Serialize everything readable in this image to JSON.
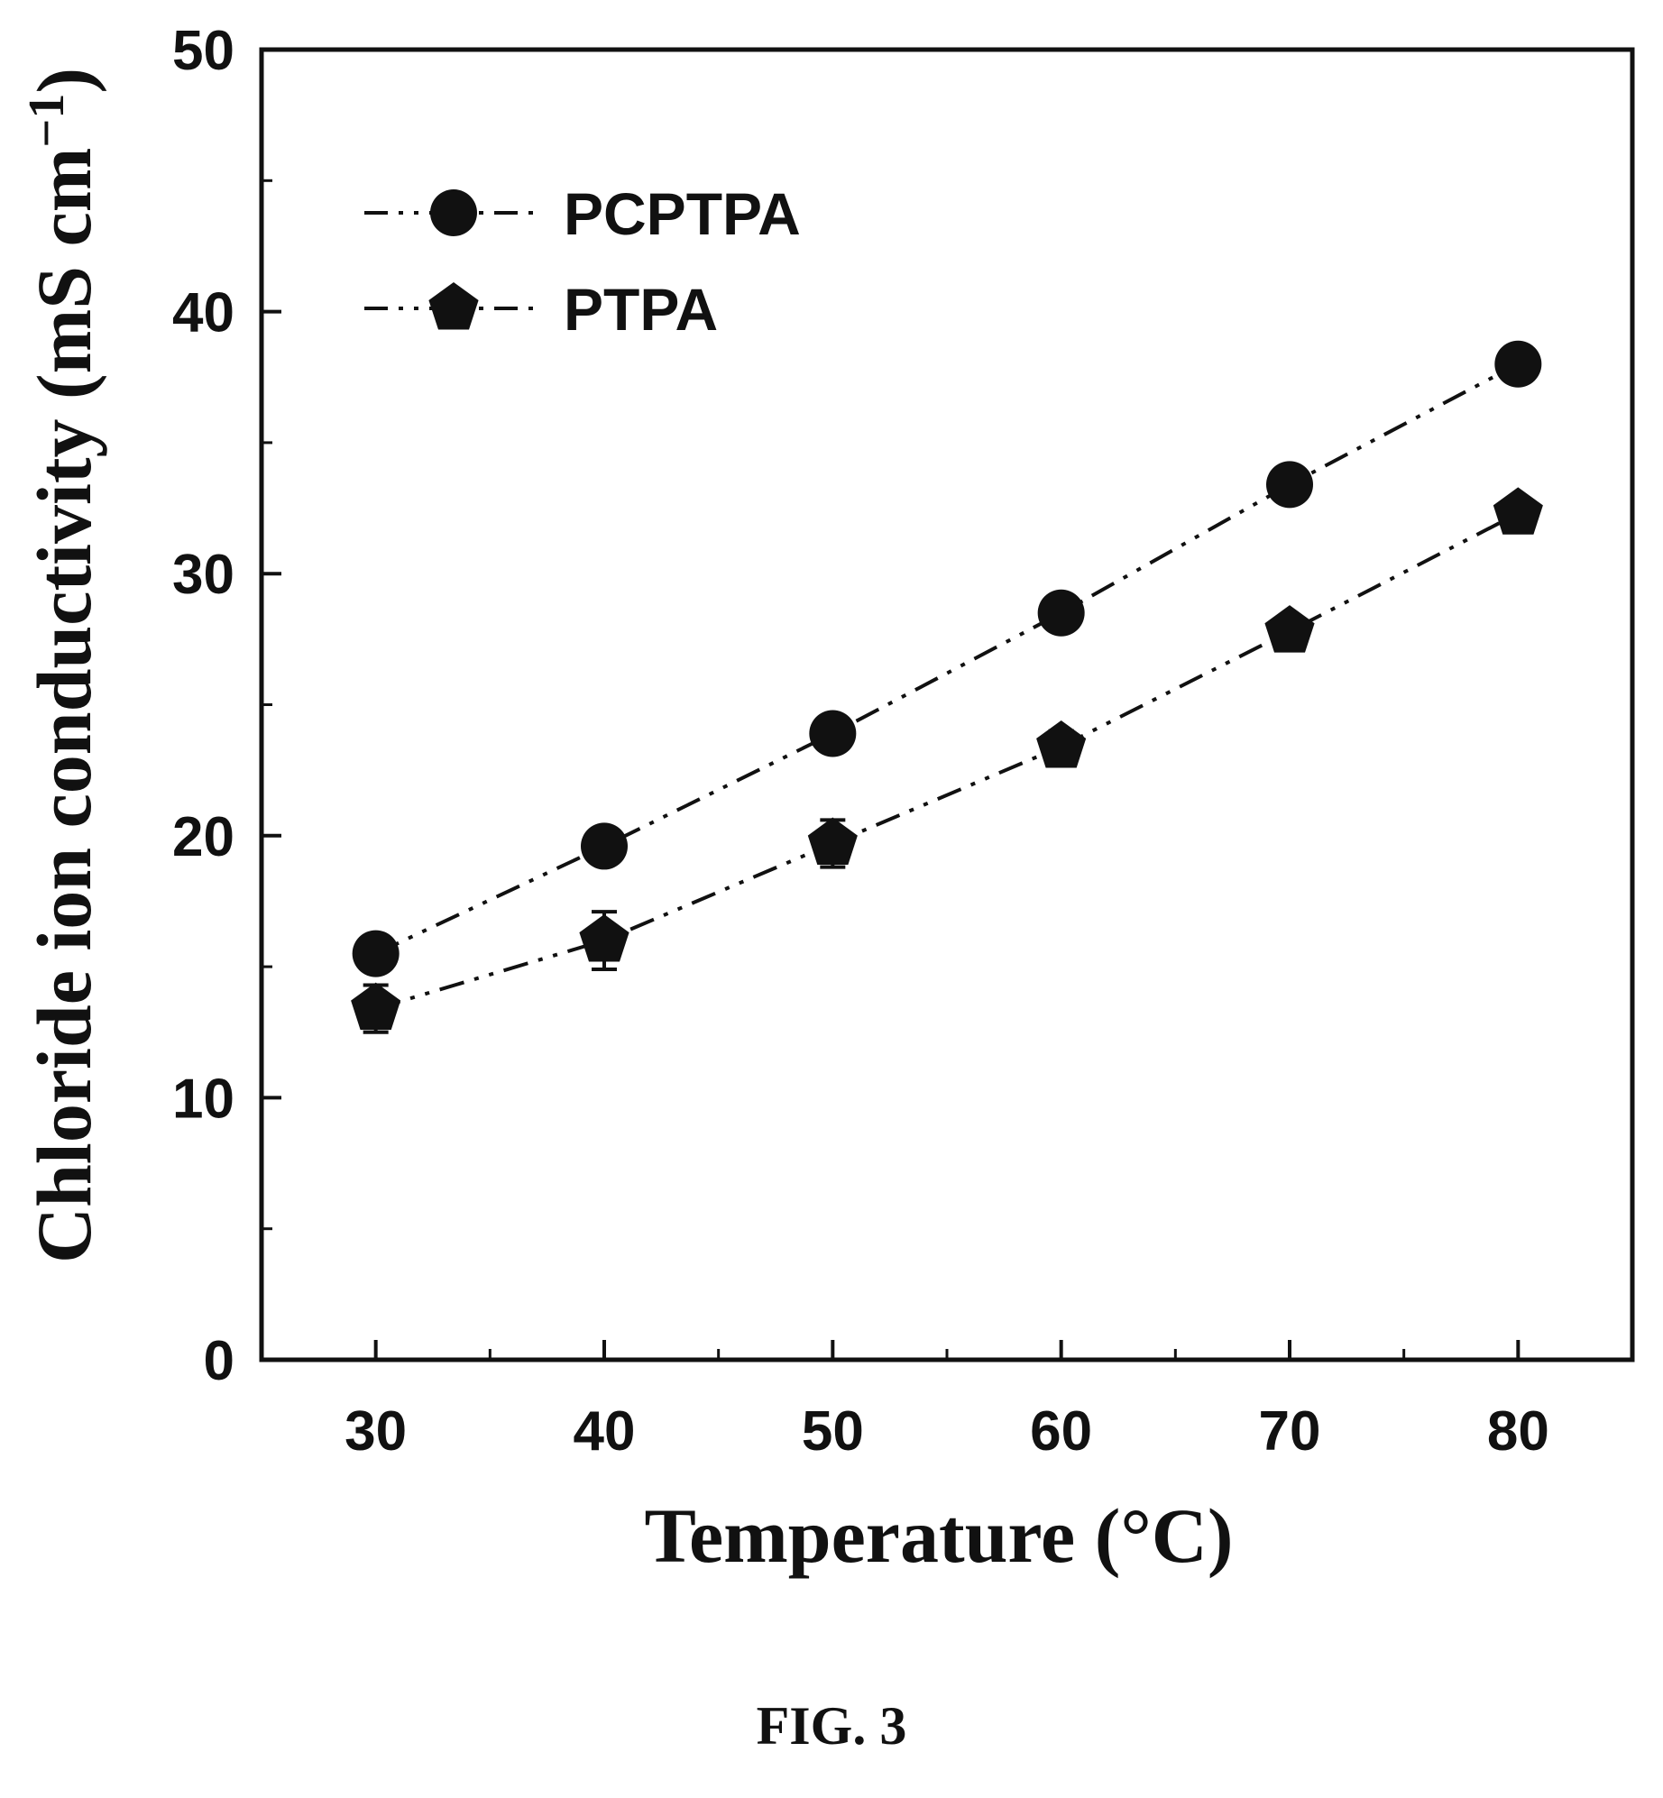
{
  "figure": {
    "caption": "FIG. 3"
  },
  "chart_data": {
    "type": "line",
    "xlabel": "Temperature (°C)",
    "ylabel": "Chloride ion conductivity (mS cm",
    "ylabel_superscript": "−1",
    "ylabel_close": ")",
    "xlim": [
      25,
      85
    ],
    "ylim": [
      0,
      50
    ],
    "x_ticks": [
      30,
      40,
      50,
      60,
      70,
      80
    ],
    "y_ticks": [
      0,
      10,
      20,
      30,
      40,
      50
    ],
    "x_minor_ticks": [
      35,
      45,
      55,
      65,
      75
    ],
    "y_minor_ticks": [
      5,
      15,
      25,
      35,
      45
    ],
    "x": [
      30,
      40,
      50,
      60,
      70,
      80
    ],
    "legend_position": "top-left",
    "grid": false,
    "series": [
      {
        "name": "PCPTPA",
        "marker": "circle",
        "line_style": "dash-dot-dot",
        "color": "#111111",
        "values": [
          15.5,
          19.6,
          23.9,
          28.5,
          33.4,
          38.0
        ],
        "errors": [
          0.3,
          0.3,
          0.3,
          0.3,
          0.3,
          0.3
        ]
      },
      {
        "name": "PTPA",
        "marker": "pentagon",
        "line_style": "dash-dot-dot",
        "color": "#111111",
        "values": [
          13.4,
          16.0,
          19.7,
          23.4,
          27.8,
          32.3
        ],
        "errors": [
          0.9,
          1.1,
          0.9,
          0.6,
          0.4,
          0.4
        ]
      }
    ]
  }
}
